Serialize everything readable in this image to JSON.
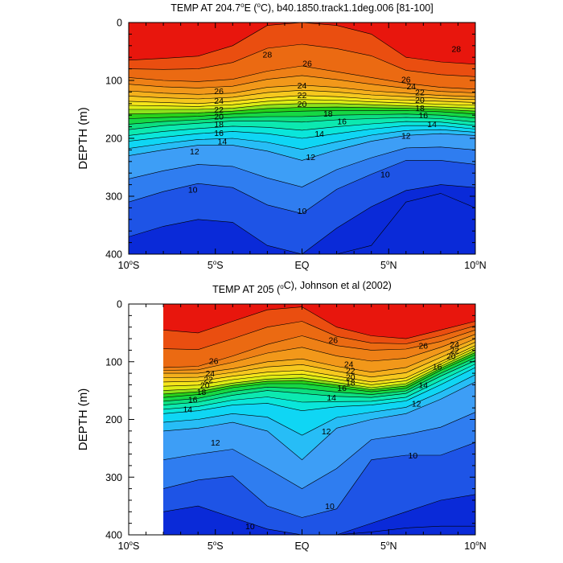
{
  "chart_data": [
    {
      "type": "contour",
      "title": "TEMP AT 204.7°E (°C), b40.1850.track1.1deg.006 [81-100]",
      "title_parts": {
        "pre": "TEMP AT 204.7",
        "sup1": "o",
        "mid": "E (",
        "sup2": "o",
        "post": "C), b40.1850.track1.1deg.006 [81-100]"
      },
      "xlabel": "",
      "ylabel": "DEPTH (m)",
      "xlim": [
        -10,
        10
      ],
      "ylim": [
        400,
        0
      ],
      "x_ticks": [
        {
          "value": -10,
          "num": "10",
          "sup": "o",
          "hem": "S"
        },
        {
          "value": -5,
          "num": "5",
          "sup": "o",
          "hem": "S"
        },
        {
          "value": 0,
          "num": "EQ",
          "sup": "",
          "hem": ""
        },
        {
          "value": 5,
          "num": "5",
          "sup": "o",
          "hem": "N"
        },
        {
          "value": 10,
          "num": "10",
          "sup": "o",
          "hem": "N"
        }
      ],
      "y_ticks": [
        "0",
        "100",
        "200",
        "300",
        "400"
      ],
      "data_lon_range": [
        -10,
        10
      ],
      "levels": [
        8,
        9,
        10,
        11,
        12,
        13,
        14,
        15,
        16,
        17,
        18,
        19,
        20,
        21,
        22,
        23,
        24,
        25,
        26,
        27,
        28
      ],
      "x": [
        -10,
        -8,
        -6,
        -4,
        -2,
        0,
        2,
        4,
        6,
        8,
        10
      ],
      "isotherm_depths": [
        {
          "t": 28,
          "depth": [
            65,
            62,
            58,
            40,
            5,
            0,
            5,
            20,
            60,
            68,
            72
          ]
        },
        {
          "t": 26,
          "depth": [
            95,
            100,
            102,
            98,
            84,
            75,
            85,
            95,
            105,
            112,
            115
          ]
        },
        {
          "t": 24,
          "depth": [
            118,
            122,
            124,
            122,
            112,
            108,
            112,
            118,
            122,
            126,
            128
          ]
        },
        {
          "t": 22,
          "depth": [
            136,
            138,
            140,
            136,
            130,
            126,
            128,
            132,
            134,
            136,
            138
          ]
        },
        {
          "t": 20,
          "depth": [
            150,
            150,
            150,
            148,
            142,
            140,
            140,
            142,
            144,
            146,
            148
          ]
        },
        {
          "t": 18,
          "depth": [
            166,
            164,
            162,
            158,
            155,
            153,
            152,
            152,
            152,
            154,
            158
          ]
        },
        {
          "t": 16,
          "depth": [
            185,
            178,
            174,
            170,
            170,
            172,
            168,
            166,
            164,
            166,
            172
          ]
        },
        {
          "t": 14,
          "depth": [
            205,
            198,
            192,
            188,
            192,
            200,
            192,
            184,
            178,
            178,
            184
          ]
        },
        {
          "t": 12,
          "depth": [
            230,
            220,
            212,
            212,
            222,
            238,
            220,
            205,
            195,
            192,
            195
          ]
        },
        {
          "t": 10,
          "depth": [
            310,
            292,
            278,
            285,
            315,
            330,
            288,
            262,
            238,
            238,
            245
          ]
        },
        {
          "t": 9,
          "depth": [
            370,
            352,
            340,
            345,
            385,
            400,
            355,
            318,
            290,
            280,
            285
          ]
        },
        {
          "t": 8,
          "depth": [
            400,
            400,
            400,
            400,
            400,
            400,
            400,
            385,
            310,
            295,
            320
          ]
        }
      ],
      "contour_labels": [
        {
          "t": "28",
          "x": -2.0,
          "d": 55
        },
        {
          "t": "28",
          "x": 8.9,
          "d": 45
        },
        {
          "t": "26",
          "x": -4.8,
          "d": 118
        },
        {
          "t": "26",
          "x": 0.3,
          "d": 70
        },
        {
          "t": "26",
          "x": 6.0,
          "d": 98
        },
        {
          "t": "24",
          "x": -4.8,
          "d": 135
        },
        {
          "t": "24",
          "x": 0.0,
          "d": 108
        },
        {
          "t": "24",
          "x": 6.3,
          "d": 110
        },
        {
          "t": "22",
          "x": -4.8,
          "d": 150
        },
        {
          "t": "22",
          "x": 0.0,
          "d": 125
        },
        {
          "t": "22",
          "x": 6.8,
          "d": 120
        },
        {
          "t": "20",
          "x": -4.8,
          "d": 162
        },
        {
          "t": "20",
          "x": 0.0,
          "d": 140
        },
        {
          "t": "20",
          "x": 6.8,
          "d": 133
        },
        {
          "t": "18",
          "x": -4.8,
          "d": 175
        },
        {
          "t": "18",
          "x": 1.5,
          "d": 157
        },
        {
          "t": "18",
          "x": 6.8,
          "d": 147
        },
        {
          "t": "16",
          "x": -4.8,
          "d": 190
        },
        {
          "t": "16",
          "x": 2.3,
          "d": 170
        },
        {
          "t": "16",
          "x": 7.0,
          "d": 160
        },
        {
          "t": "14",
          "x": -4.6,
          "d": 205
        },
        {
          "t": "14",
          "x": 1.0,
          "d": 192
        },
        {
          "t": "14",
          "x": 7.5,
          "d": 175
        },
        {
          "t": "12",
          "x": -6.2,
          "d": 222
        },
        {
          "t": "12",
          "x": 0.5,
          "d": 232
        },
        {
          "t": "12",
          "x": 6.0,
          "d": 195
        },
        {
          "t": "10",
          "x": -6.3,
          "d": 288
        },
        {
          "t": "10",
          "x": 0.0,
          "d": 325
        },
        {
          "t": "10",
          "x": 4.8,
          "d": 262
        }
      ]
    },
    {
      "type": "contour",
      "title": "TEMP AT 205 (°C), Johnson et al (2002)",
      "title_parts": {
        "pre": "TEMP AT 205 (",
        "sup1": "o",
        "mid": "",
        "sup2": "",
        "post": "C), Johnson et al (2002)"
      },
      "xlabel": "",
      "ylabel": "DEPTH (m)",
      "xlim": [
        -10,
        10
      ],
      "ylim": [
        400,
        0
      ],
      "x_ticks": [
        {
          "value": -10,
          "num": "10",
          "sup": "o",
          "hem": "S"
        },
        {
          "value": -5,
          "num": "5",
          "sup": "o",
          "hem": "S"
        },
        {
          "value": 0,
          "num": "EQ",
          "sup": "",
          "hem": ""
        },
        {
          "value": 5,
          "num": "5",
          "sup": "o",
          "hem": "N"
        },
        {
          "value": 10,
          "num": "10",
          "sup": "o",
          "hem": "N"
        }
      ],
      "y_ticks": [
        "0",
        "100",
        "200",
        "300",
        "400"
      ],
      "data_lon_range": [
        -8,
        10
      ],
      "levels": [
        8,
        9,
        10,
        11,
        12,
        13,
        14,
        15,
        16,
        17,
        18,
        19,
        20,
        21,
        22,
        23,
        24,
        25,
        26,
        27,
        28
      ],
      "x": [
        -8,
        -6,
        -4,
        -2,
        0,
        2,
        4,
        6,
        8,
        10
      ],
      "isotherm_depths": [
        {
          "t": 28,
          "depth": [
            45,
            50,
            30,
            10,
            5,
            40,
            55,
            60,
            45,
            30
          ]
        },
        {
          "t": 26,
          "depth": [
            110,
            108,
            90,
            70,
            55,
            72,
            80,
            78,
            65,
            45
          ]
        },
        {
          "t": 24,
          "depth": [
            120,
            120,
            112,
            100,
            95,
            108,
            118,
            110,
            85,
            60
          ]
        },
        {
          "t": 22,
          "depth": [
            135,
            134,
            125,
            118,
            115,
            125,
            135,
            128,
            100,
            72
          ]
        },
        {
          "t": 20,
          "depth": [
            150,
            147,
            137,
            130,
            128,
            136,
            145,
            138,
            108,
            80
          ]
        },
        {
          "t": 18,
          "depth": [
            162,
            157,
            145,
            138,
            138,
            145,
            152,
            146,
            115,
            88
          ]
        },
        {
          "t": 16,
          "depth": [
            175,
            170,
            158,
            150,
            155,
            160,
            162,
            155,
            125,
            98
          ]
        },
        {
          "t": 14,
          "depth": [
            190,
            185,
            175,
            172,
            185,
            178,
            175,
            168,
            140,
            110
          ]
        },
        {
          "t": 12,
          "depth": [
            220,
            215,
            205,
            220,
            270,
            215,
            200,
            190,
            165,
            135
          ]
        },
        {
          "t": 10,
          "depth": [
            320,
            305,
            298,
            350,
            370,
            355,
            270,
            262,
            262,
            240
          ]
        },
        {
          "t": 9,
          "depth": [
            360,
            350,
            370,
            390,
            400,
            400,
            380,
            360,
            340,
            330
          ]
        },
        {
          "t": 8,
          "depth": [
            400,
            400,
            400,
            400,
            400,
            400,
            395,
            388,
            385,
            385
          ]
        }
      ],
      "contour_labels": [
        {
          "t": "26",
          "x": -5.1,
          "d": 98
        },
        {
          "t": "26",
          "x": 1.8,
          "d": 62
        },
        {
          "t": "26",
          "x": 7.0,
          "d": 72
        },
        {
          "t": "24",
          "x": 8.8,
          "d": 70
        },
        {
          "t": "24",
          "x": -5.3,
          "d": 120
        },
        {
          "t": "24",
          "x": 2.7,
          "d": 104
        },
        {
          "t": "22",
          "x": 8.8,
          "d": 80
        },
        {
          "t": "22",
          "x": -5.4,
          "d": 130
        },
        {
          "t": "22",
          "x": 2.8,
          "d": 115
        },
        {
          "t": "20",
          "x": 8.6,
          "d": 90
        },
        {
          "t": "20",
          "x": -5.6,
          "d": 140
        },
        {
          "t": "20",
          "x": 2.8,
          "d": 126
        },
        {
          "t": "18",
          "x": -5.8,
          "d": 152
        },
        {
          "t": "18",
          "x": 2.8,
          "d": 136
        },
        {
          "t": "16",
          "x": -6.3,
          "d": 165
        },
        {
          "t": "16",
          "x": 2.3,
          "d": 145
        },
        {
          "t": "16",
          "x": 7.8,
          "d": 108
        },
        {
          "t": "14",
          "x": -6.6,
          "d": 182
        },
        {
          "t": "14",
          "x": 1.7,
          "d": 162
        },
        {
          "t": "14",
          "x": 7.0,
          "d": 140
        },
        {
          "t": "12",
          "x": -5.0,
          "d": 240
        },
        {
          "t": "12",
          "x": 1.4,
          "d": 220
        },
        {
          "t": "12",
          "x": 6.6,
          "d": 172
        },
        {
          "t": "10",
          "x": 6.4,
          "d": 262
        },
        {
          "t": "10",
          "x": 1.6,
          "d": 350
        },
        {
          "t": "10",
          "x": -3.0,
          "d": 385
        }
      ]
    }
  ]
}
